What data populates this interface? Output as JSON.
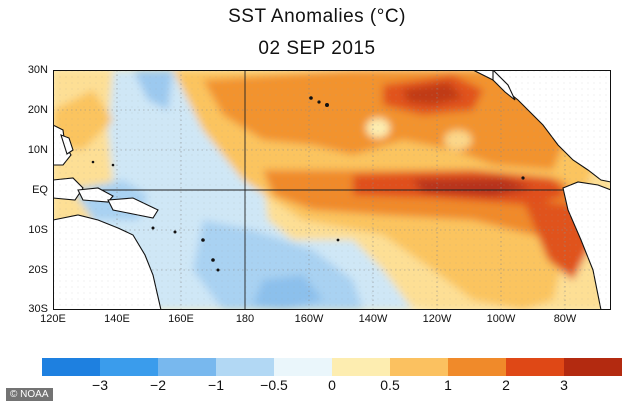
{
  "title": "SST Anomalies (°C)",
  "subtitle": "02 SEP 2015",
  "lat_labels": [
    "30N",
    "20N",
    "10N",
    "EQ",
    "10S",
    "20S",
    "30S"
  ],
  "lon_labels": [
    "120E",
    "140E",
    "160E",
    "180",
    "160W",
    "140W",
    "120W",
    "100W",
    "80W"
  ],
  "legend": {
    "labels": [
      "−3",
      "−2",
      "−1",
      "−0.5",
      "0",
      "0.5",
      "1",
      "2",
      "3"
    ],
    "colors": [
      "#1e80e0",
      "#3a9cec",
      "#78b8ee",
      "#b2d8f4",
      "#eaf6fb",
      "#fdedb0",
      "#fbc160",
      "#f08a2a",
      "#df4816",
      "#b32a10"
    ]
  },
  "credit": "© NOAA"
}
